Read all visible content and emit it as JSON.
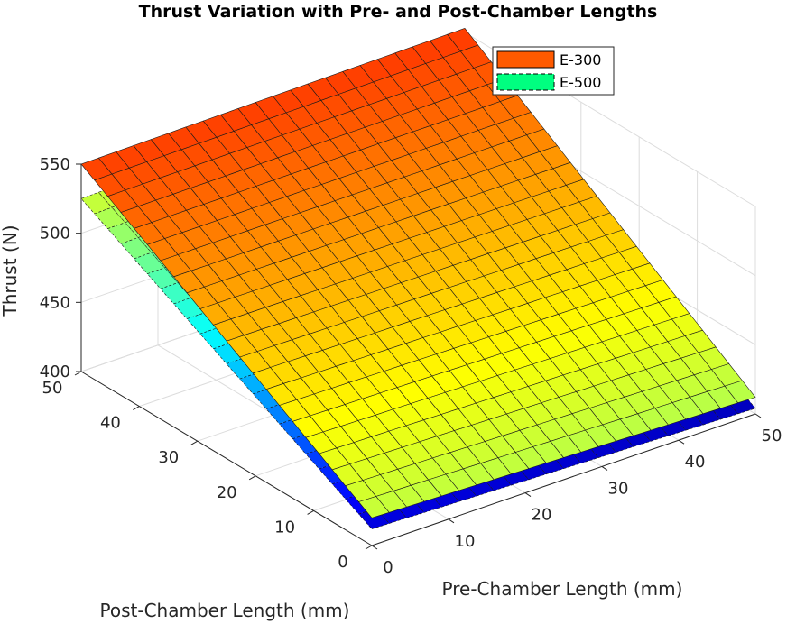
{
  "chart_data": {
    "type": "surface3d",
    "title": "Thrust Variation with Pre- and Post-Chamber Lengths",
    "xlabel": "Pre-Chamber Length (mm)",
    "ylabel": "Post-Chamber Length (mm)",
    "zlabel": "Thrust (N)",
    "xlim": [
      0,
      50
    ],
    "ylim": [
      0,
      50
    ],
    "zlim": [
      400,
      550
    ],
    "x_ticks": [
      0,
      10,
      20,
      30,
      40,
      50
    ],
    "y_ticks": [
      0,
      10,
      20,
      30,
      40,
      50
    ],
    "z_ticks": [
      400,
      450,
      500,
      550
    ],
    "grid": true,
    "legend_position": "top-right",
    "series": [
      {
        "name": "E-300",
        "surface_style": "solid mesh edges",
        "corners": [
          {
            "x": 0,
            "y": 0,
            "z": 420
          },
          {
            "x": 50,
            "y": 0,
            "z": 412
          },
          {
            "x": 0,
            "y": 50,
            "z": 550
          },
          {
            "x": 50,
            "y": 50,
            "z": 553
          }
        ],
        "legend_color": "#ff5a00"
      },
      {
        "name": "E-500",
        "surface_style": "dashed mesh edges",
        "corners": [
          {
            "x": 0,
            "y": 0,
            "z": 412
          },
          {
            "x": 50,
            "y": 0,
            "z": 404
          },
          {
            "x": 0,
            "y": 50,
            "z": 525
          },
          {
            "x": 50,
            "y": 50,
            "z": 530
          }
        ],
        "legend_color": "#00ff80"
      }
    ]
  }
}
